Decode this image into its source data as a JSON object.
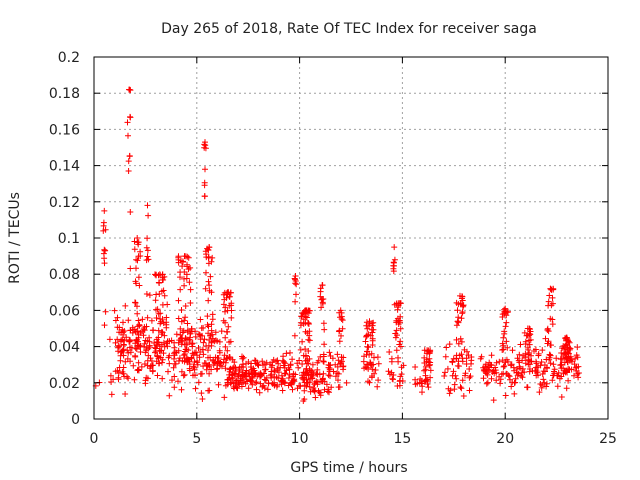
{
  "chart_data": {
    "type": "scatter",
    "title": "Day 265 of 2018, Rate Of TEC Index for receiver saga",
    "xlabel": "GPS time / hours",
    "ylabel": "ROTI / TECUs",
    "xlim": [
      0,
      25
    ],
    "ylim": [
      0,
      0.2
    ],
    "grid": true,
    "marker": "plus",
    "color": "#ff0000",
    "x_ticks": [
      "0",
      "5",
      "10",
      "15",
      "20",
      "25"
    ],
    "y_ticks": [
      "0",
      "0.02",
      "0.04",
      "0.06",
      "0.08",
      "0.1",
      "0.12",
      "0.14",
      "0.16",
      "0.18",
      "0.2"
    ],
    "segments": [
      {
        "x_start": 0.0,
        "x_end": 0.5,
        "baseline": 0.022,
        "spread": 0.006,
        "density": 4
      },
      {
        "x_start": 0.5,
        "x_end": 1.0,
        "baseline": 0.03,
        "spread": 0.012,
        "density": 10
      },
      {
        "x_start": 1.0,
        "x_end": 4.5,
        "baseline": 0.038,
        "spread": 0.018,
        "density": 60
      },
      {
        "x_start": 4.5,
        "x_end": 6.5,
        "baseline": 0.035,
        "spread": 0.016,
        "density": 60
      },
      {
        "x_start": 6.5,
        "x_end": 9.0,
        "baseline": 0.025,
        "spread": 0.008,
        "density": 60
      },
      {
        "x_start": 9.0,
        "x_end": 11.0,
        "baseline": 0.024,
        "spread": 0.009,
        "density": 55
      },
      {
        "x_start": 11.0,
        "x_end": 12.3,
        "baseline": 0.026,
        "spread": 0.009,
        "density": 35
      },
      {
        "x_start": 13.1,
        "x_end": 13.9,
        "baseline": 0.027,
        "spread": 0.009,
        "density": 25
      },
      {
        "x_start": 14.3,
        "x_end": 15.1,
        "baseline": 0.03,
        "spread": 0.011,
        "density": 25
      },
      {
        "x_start": 15.6,
        "x_end": 16.5,
        "baseline": 0.022,
        "spread": 0.006,
        "density": 18
      },
      {
        "x_start": 17.0,
        "x_end": 18.4,
        "baseline": 0.027,
        "spread": 0.012,
        "density": 30
      },
      {
        "x_start": 18.8,
        "x_end": 20.6,
        "baseline": 0.026,
        "spread": 0.009,
        "density": 35
      },
      {
        "x_start": 20.6,
        "x_end": 23.6,
        "baseline": 0.028,
        "spread": 0.01,
        "density": 40
      }
    ],
    "peaks": [
      {
        "x": 0.5,
        "y": 0.115,
        "width": 0.15,
        "floor": 0.05
      },
      {
        "x": 1.7,
        "y": 0.182,
        "width": 0.15,
        "floor": 0.06
      },
      {
        "x": 2.1,
        "y": 0.1,
        "width": 0.3,
        "floor": 0.04
      },
      {
        "x": 2.6,
        "y": 0.118,
        "width": 0.1,
        "floor": 0.06
      },
      {
        "x": 3.2,
        "y": 0.08,
        "width": 0.5,
        "floor": 0.03
      },
      {
        "x": 4.4,
        "y": 0.09,
        "width": 0.6,
        "floor": 0.03
      },
      {
        "x": 5.4,
        "y": 0.153,
        "width": 0.12,
        "floor": 0.06
      },
      {
        "x": 5.6,
        "y": 0.095,
        "width": 0.35,
        "floor": 0.04
      },
      {
        "x": 6.5,
        "y": 0.07,
        "width": 0.4,
        "floor": 0.03
      },
      {
        "x": 9.8,
        "y": 0.079,
        "width": 0.08,
        "floor": 0.04
      },
      {
        "x": 10.3,
        "y": 0.06,
        "width": 0.5,
        "floor": 0.03
      },
      {
        "x": 11.1,
        "y": 0.074,
        "width": 0.2,
        "floor": 0.03
      },
      {
        "x": 12.0,
        "y": 0.06,
        "width": 0.2,
        "floor": 0.03
      },
      {
        "x": 13.4,
        "y": 0.054,
        "width": 0.4,
        "floor": 0.025
      },
      {
        "x": 14.6,
        "y": 0.095,
        "width": 0.1,
        "floor": 0.05
      },
      {
        "x": 14.8,
        "y": 0.064,
        "width": 0.3,
        "floor": 0.03
      },
      {
        "x": 16.2,
        "y": 0.038,
        "width": 0.3,
        "floor": 0.02
      },
      {
        "x": 17.8,
        "y": 0.068,
        "width": 0.35,
        "floor": 0.03
      },
      {
        "x": 20.0,
        "y": 0.061,
        "width": 0.3,
        "floor": 0.03
      },
      {
        "x": 21.1,
        "y": 0.05,
        "width": 0.3,
        "floor": 0.03
      },
      {
        "x": 22.2,
        "y": 0.072,
        "width": 0.3,
        "floor": 0.03
      },
      {
        "x": 23.0,
        "y": 0.045,
        "width": 0.4,
        "floor": 0.025
      }
    ]
  }
}
